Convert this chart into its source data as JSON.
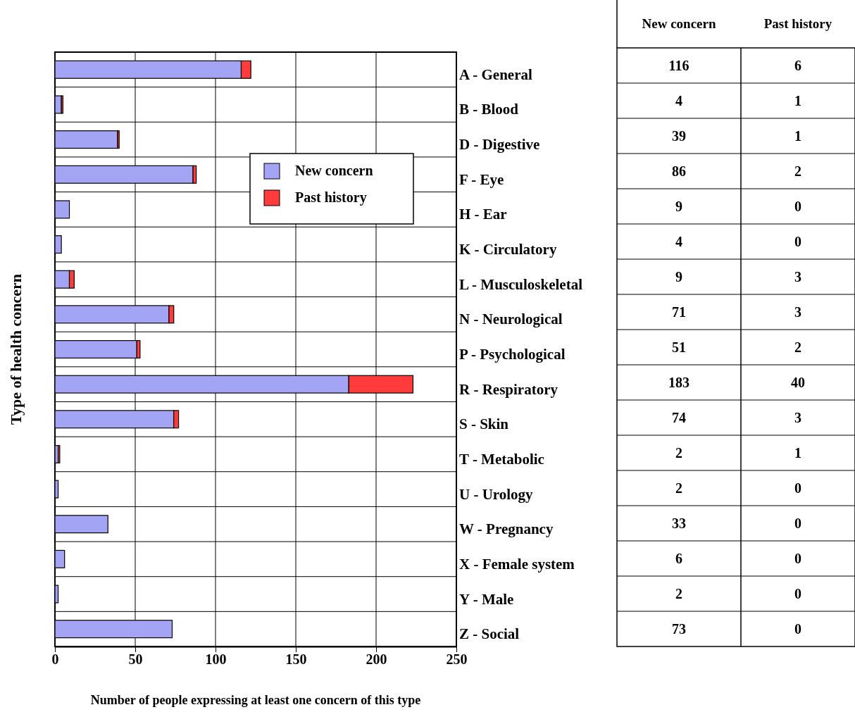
{
  "chart_data": {
    "type": "bar",
    "orientation": "horizontal",
    "stacked": true,
    "xlabel": "Number of people expressing at least one concern of this type",
    "ylabel": "Type of health concern",
    "categories": [
      "A - General",
      "B - Blood",
      "D - Digestive",
      "F - Eye",
      "H - Ear",
      "K - Circulatory",
      "L - Musculoskeletal",
      "N - Neurological",
      "P - Psychological",
      "R - Respiratory",
      "S - Skin",
      "T - Metabolic",
      "U - Urology",
      "W - Pregnancy",
      "X - Female system",
      "Y - Male",
      "Z - Social"
    ],
    "series": [
      {
        "name": "New concern",
        "color": "#a4a4f4",
        "values": [
          116,
          4,
          39,
          86,
          9,
          4,
          9,
          71,
          51,
          183,
          74,
          2,
          2,
          33,
          6,
          2,
          73
        ]
      },
      {
        "name": "Past history",
        "color": "#ff3b3b",
        "values": [
          6,
          1,
          1,
          2,
          0,
          0,
          3,
          3,
          2,
          40,
          3,
          1,
          0,
          0,
          0,
          0,
          0
        ]
      }
    ],
    "xlim": [
      0,
      250
    ],
    "xticks": [
      0,
      50,
      100,
      150,
      200,
      250
    ],
    "grid": true,
    "legend": "top right",
    "data_labels": true
  }
}
